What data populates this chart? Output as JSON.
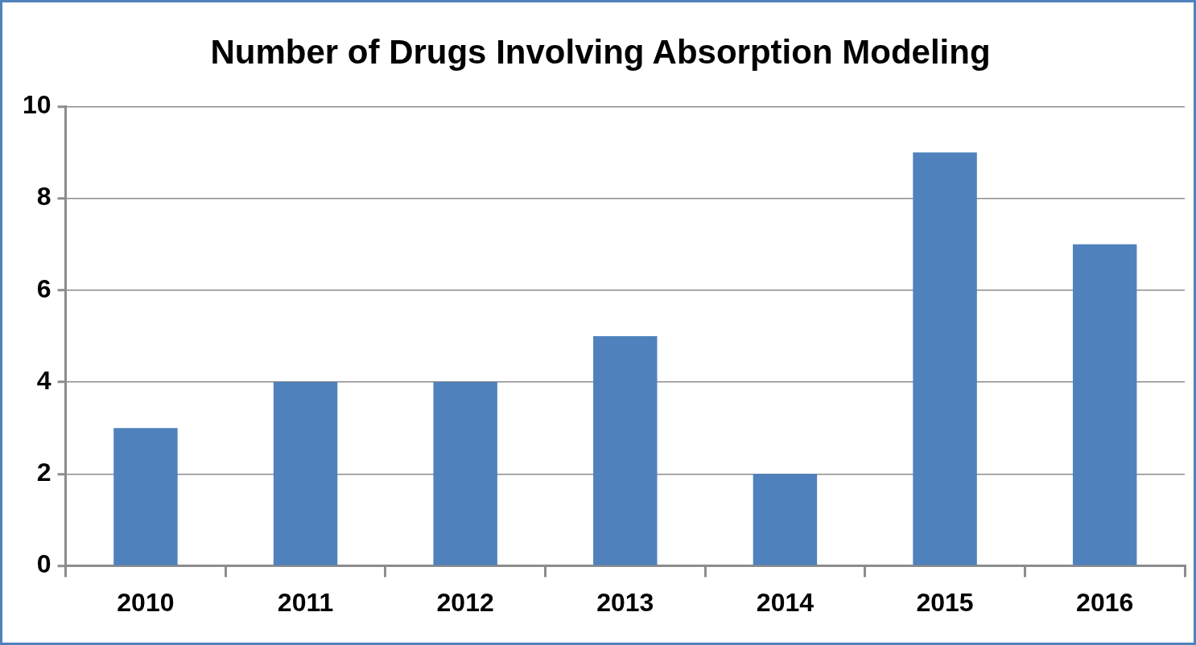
{
  "chart_data": {
    "type": "bar",
    "title": "Number of Drugs Involving Absorption Modeling",
    "categories": [
      "2010",
      "2011",
      "2012",
      "2013",
      "2014",
      "2015",
      "2016"
    ],
    "values": [
      3,
      4,
      4,
      5,
      2,
      9,
      7
    ],
    "color": "#4f81bd",
    "ylim": [
      0,
      10
    ],
    "yticks": [
      0,
      2,
      4,
      6,
      8,
      10
    ],
    "grid": "y",
    "legend": false
  }
}
